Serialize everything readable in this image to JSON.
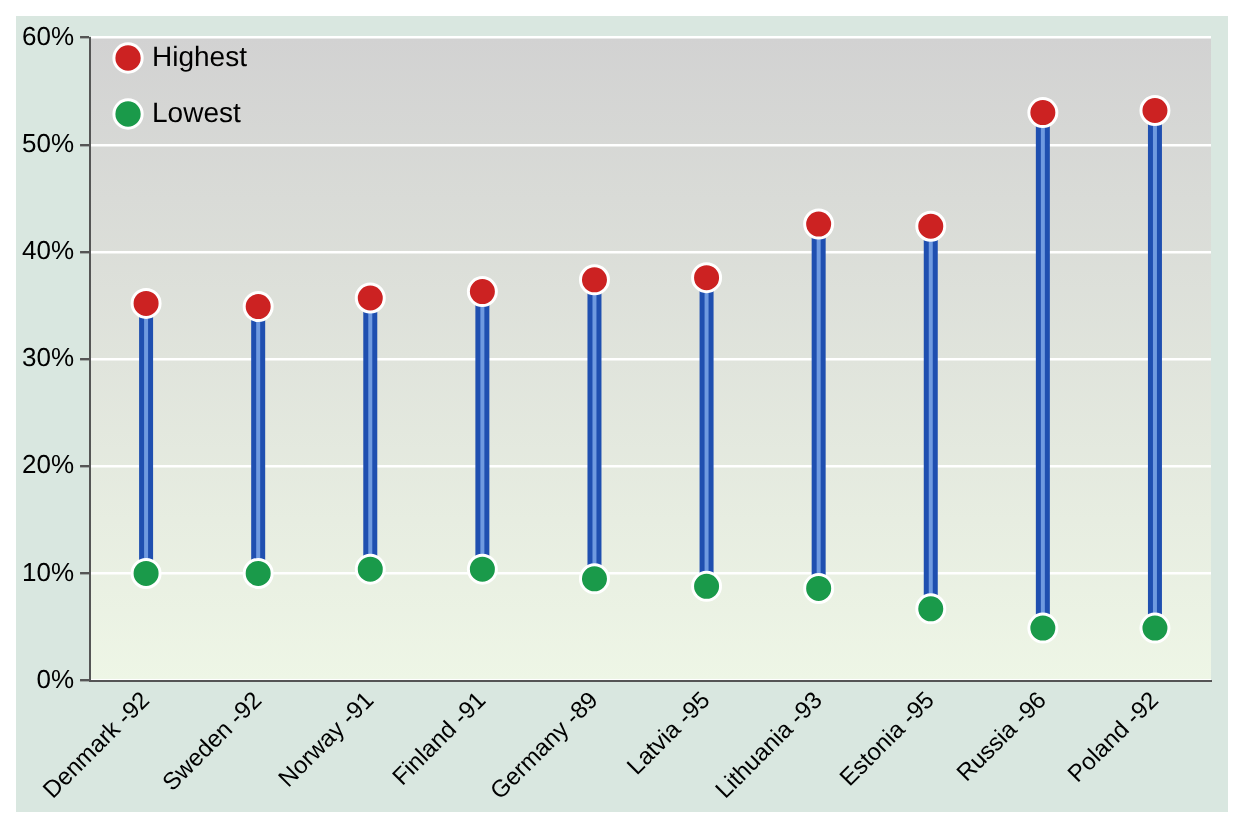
{
  "chart_data": {
    "type": "scatter",
    "categories": [
      "Denmark -92",
      "Sweden -92",
      "Norway -91",
      "Finland -91",
      "Germany -89",
      "Latvia -95",
      "Lithuania -93",
      "Estonia -95",
      "Russia -96",
      "Poland -92"
    ],
    "series": [
      {
        "name": "Highest",
        "color": "#cc2222",
        "values": [
          35.2,
          34.9,
          35.7,
          36.3,
          37.4,
          37.6,
          42.6,
          42.4,
          53.0,
          53.2
        ]
      },
      {
        "name": "Lowest",
        "color": "#1a9a4a",
        "values": [
          10.0,
          10.0,
          10.4,
          10.4,
          9.5,
          8.8,
          8.6,
          6.7,
          4.9,
          4.9
        ]
      }
    ],
    "ylim": [
      0,
      60
    ],
    "yticks": [
      {
        "value": 0,
        "label": "0%"
      },
      {
        "value": 10,
        "label": "10%"
      },
      {
        "value": 20,
        "label": "20%"
      },
      {
        "value": 30,
        "label": "30%"
      },
      {
        "value": 40,
        "label": "40%"
      },
      {
        "value": 50,
        "label": "50%"
      },
      {
        "value": 60,
        "label": "60%"
      }
    ],
    "grid": "y",
    "legend": "top left",
    "marker": "circle"
  }
}
